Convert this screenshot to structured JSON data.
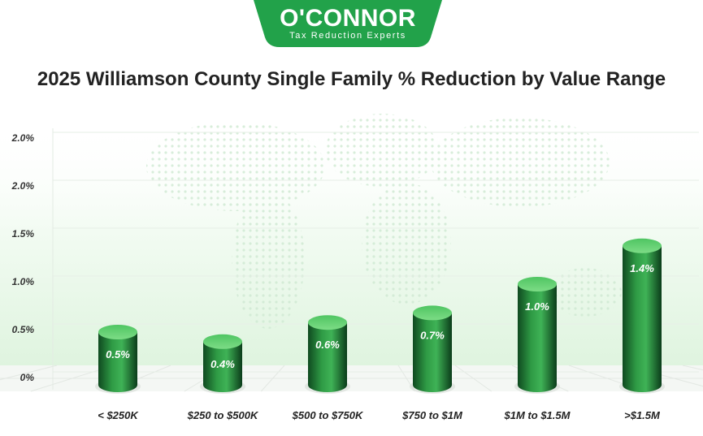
{
  "logo": {
    "name": "O'CONNOR",
    "tagline": "Tax Reduction Experts"
  },
  "chart_data": {
    "type": "bar",
    "title": "2025 Williamson County Single Family % Reduction by Value Range",
    "xlabel": "",
    "ylabel": "",
    "categories": [
      "< $250K",
      "$250 to $500K",
      "$500 to $750K",
      "$750 to $1M",
      "$1M to $1.5M",
      ">$1.5M"
    ],
    "values": [
      0.5,
      0.4,
      0.6,
      0.7,
      1.0,
      1.4
    ],
    "value_labels": [
      "0.5%",
      "0.4%",
      "0.6%",
      "0.7%",
      "1.0%",
      "1.4%"
    ],
    "y_tick_labels": [
      "0%",
      "0.5%",
      "1.0%",
      "1.5%",
      "2.0%",
      "2.0%"
    ],
    "ylim": [
      0,
      2.5
    ],
    "grid": true,
    "legend": "none"
  },
  "colors": {
    "brand_green": "#22a24a",
    "bar_dark": "#0b3d1a",
    "bar_mid": "#2f9b45",
    "bar_light": "#5ed06e",
    "background_band": "#eef9ee"
  }
}
